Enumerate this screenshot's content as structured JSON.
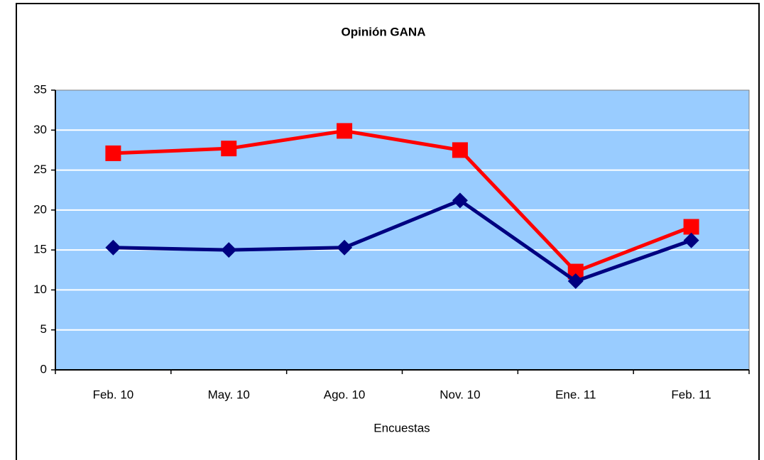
{
  "chart_data": {
    "type": "line",
    "title": "Opinión GANA",
    "x_label": "Encuestas",
    "categories": [
      "Feb. 10",
      "May. 10",
      "Ago. 10",
      "Nov. 10",
      "Ene. 11",
      "Feb. 11"
    ],
    "series": [
      {
        "color": "#ff0000",
        "marker": "square",
        "values": [
          27.1,
          27.7,
          29.9,
          27.5,
          12.3,
          17.9
        ]
      },
      {
        "color": "#000080",
        "marker": "diamond",
        "values": [
          15.3,
          15.0,
          15.3,
          21.2,
          11.1,
          16.2
        ]
      }
    ],
    "ylim": [
      0,
      35
    ],
    "yticks": [
      0,
      5,
      10,
      15,
      20,
      25,
      30,
      35
    ],
    "grid": true,
    "plot_background": "#99ccff"
  }
}
